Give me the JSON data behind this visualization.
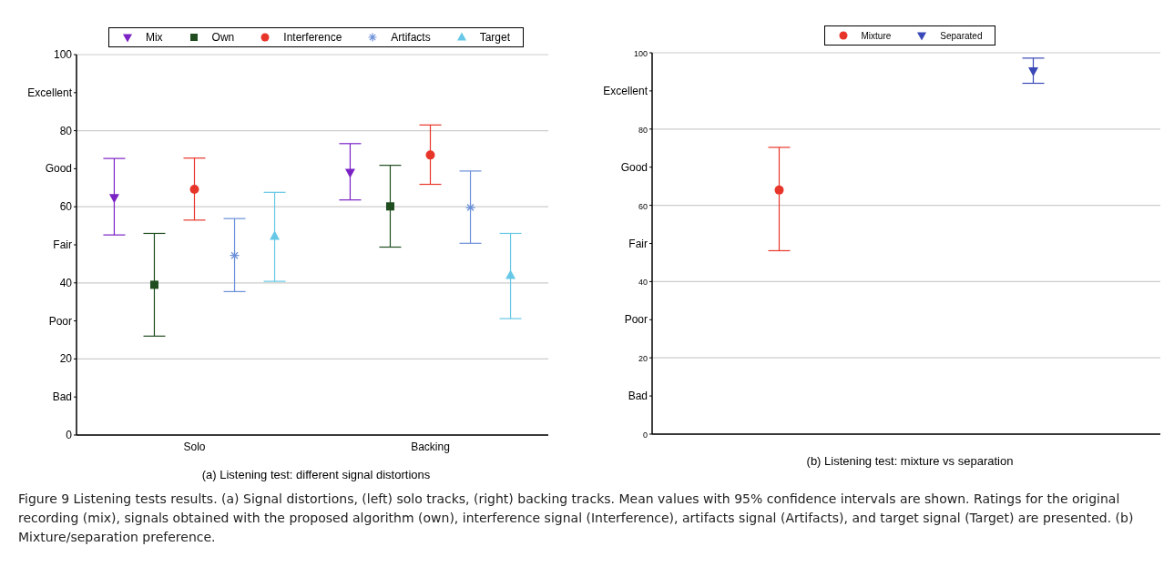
{
  "chart_data": [
    {
      "type": "scatter",
      "title": "(a) Listening test: different signal distortions",
      "categories": [
        "Solo",
        "Backing"
      ],
      "ylim": [
        0,
        100
      ],
      "yticks": [
        0,
        {
          "value": 10,
          "label": "Bad"
        },
        20,
        {
          "value": 30,
          "label": "Poor"
        },
        40,
        {
          "value": 50,
          "label": "Fair"
        },
        60,
        {
          "value": 70,
          "label": "Good"
        },
        80,
        {
          "value": 90,
          "label": "Excellent"
        },
        100
      ],
      "grid": "y",
      "legend": "top",
      "series": [
        {
          "name": "Mix",
          "color": "#7b22c4",
          "marker": "triangle-down",
          "values": [
            62.4,
            69
          ],
          "errors": [
            [
              52.6,
              72.7
            ],
            [
              61.8,
              76.6
            ]
          ]
        },
        {
          "name": "Own",
          "color": "#1f4d1f",
          "marker": "square",
          "values": [
            39.5,
            60.1
          ],
          "errors": [
            [
              26,
              53
            ],
            [
              49.4,
              70.9
            ]
          ]
        },
        {
          "name": "Interference",
          "color": "#e8352a",
          "marker": "circle",
          "values": [
            64.6,
            73.6
          ],
          "errors": [
            [
              56.5,
              72.8
            ],
            [
              65.9,
              81.5
            ]
          ]
        },
        {
          "name": "Artifacts",
          "color": "#6a8fd8",
          "marker": "cross",
          "values": [
            47.2,
            59.8
          ],
          "errors": [
            [
              37.7,
              56.9
            ],
            [
              50.4,
              69.4
            ]
          ]
        },
        {
          "name": "Target",
          "color": "#66c8e6",
          "marker": "triangle",
          "values": [
            52.3,
            42
          ],
          "errors": [
            [
              40.4,
              63.8
            ],
            [
              30.6,
              53
            ]
          ]
        }
      ],
      "annotations": [
        "Figure 9 Listening tests results. (a) Signal distortions, (left) solo tracks, (right) backing tracks. Mean values with 95% confidence intervals are shown. Ratings for the original recording (mix), signals obtained with the proposed algorithm (own), interference signal (Interference), artifacts signal (Artifacts), and target signal (Target) are presented. (b) Mixture/separation preference."
      ]
    },
    {
      "type": "scatter",
      "title": "(b) Listening test: mixture vs separation",
      "categories": [
        null,
        null
      ],
      "ylim": [
        0,
        100
      ],
      "yticks": [
        0,
        {
          "value": 10,
          "label": "Bad"
        },
        20,
        {
          "value": 30,
          "label": "Poor"
        },
        40,
        {
          "value": 50,
          "label": "Fair"
        },
        60,
        {
          "value": 70,
          "label": "Good"
        },
        80,
        {
          "value": 90,
          "label": "Excellent"
        },
        100
      ],
      "grid": "y",
      "legend": "top",
      "series": [
        {
          "name": "Mixture",
          "color": "#e8352a",
          "marker": "circle",
          "values": [
            64,
            null
          ],
          "errors": [
            [
              48.1,
              75.2
            ],
            null
          ]
        },
        {
          "name": "Separated",
          "color": "#3a48b8",
          "marker": "triangle-down",
          "values": [
            null,
            95.2
          ],
          "errors": [
            null,
            [
              92,
              98.6
            ]
          ]
        }
      ]
    }
  ]
}
